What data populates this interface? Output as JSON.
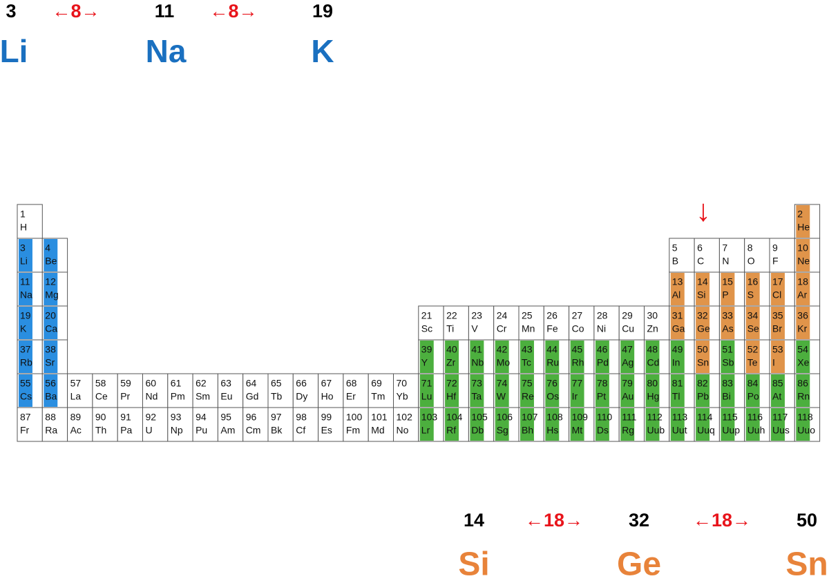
{
  "header": {
    "numbers": [
      "3",
      "11",
      "19"
    ],
    "gaps": [
      "←8→",
      "←8→"
    ],
    "symbols": [
      "Li",
      "Na",
      "K"
    ]
  },
  "footer": {
    "numbers": [
      "14",
      "32",
      "50"
    ],
    "gaps": [
      "←18→",
      "←18→"
    ],
    "symbols": [
      "Si",
      "Ge",
      "Sn"
    ]
  },
  "marker": "↓",
  "table": {
    "rows": [
      [
        [
          1,
          "H"
        ],
        [
          2,
          "He"
        ]
      ],
      [
        [
          3,
          "Li"
        ],
        [
          4,
          "Be"
        ],
        [
          5,
          "B"
        ],
        [
          6,
          "C"
        ],
        [
          7,
          "N"
        ],
        [
          8,
          "O"
        ],
        [
          9,
          "F"
        ],
        [
          10,
          "Ne"
        ]
      ],
      [
        [
          11,
          "Na"
        ],
        [
          12,
          "Mg"
        ],
        [
          13,
          "Al"
        ],
        [
          14,
          "Si"
        ],
        [
          15,
          "P"
        ],
        [
          16,
          "S"
        ],
        [
          17,
          "Cl"
        ],
        [
          18,
          "Ar"
        ]
      ],
      [
        [
          19,
          "K"
        ],
        [
          20,
          "Ca"
        ],
        [
          21,
          "Sc"
        ],
        [
          22,
          "Ti"
        ],
        [
          23,
          "V"
        ],
        [
          24,
          "Cr"
        ],
        [
          25,
          "Mn"
        ],
        [
          26,
          "Fe"
        ],
        [
          27,
          "Co"
        ],
        [
          28,
          "Ni"
        ],
        [
          29,
          "Cu"
        ],
        [
          30,
          "Zn"
        ],
        [
          31,
          "Ga"
        ],
        [
          32,
          "Ge"
        ],
        [
          33,
          "As"
        ],
        [
          34,
          "Se"
        ],
        [
          35,
          "Br"
        ],
        [
          36,
          "Kr"
        ]
      ],
      [
        [
          37,
          "Rb"
        ],
        [
          38,
          "Sr"
        ],
        [
          39,
          "Y"
        ],
        [
          40,
          "Zr"
        ],
        [
          41,
          "Nb"
        ],
        [
          42,
          "Mo"
        ],
        [
          43,
          "Tc"
        ],
        [
          44,
          "Ru"
        ],
        [
          45,
          "Rh"
        ],
        [
          46,
          "Pd"
        ],
        [
          47,
          "Ag"
        ],
        [
          48,
          "Cd"
        ],
        [
          49,
          "In"
        ],
        [
          50,
          "Sn"
        ],
        [
          51,
          "Sb"
        ],
        [
          52,
          "Te"
        ],
        [
          53,
          "I"
        ],
        [
          54,
          "Xe"
        ]
      ],
      [
        [
          55,
          "Cs"
        ],
        [
          56,
          "Ba"
        ],
        [
          57,
          "La"
        ],
        [
          58,
          "Ce"
        ],
        [
          59,
          "Pr"
        ],
        [
          60,
          "Nd"
        ],
        [
          61,
          "Pm"
        ],
        [
          62,
          "Sm"
        ],
        [
          63,
          "Eu"
        ],
        [
          64,
          "Gd"
        ],
        [
          65,
          "Tb"
        ],
        [
          66,
          "Dy"
        ],
        [
          67,
          "Ho"
        ],
        [
          68,
          "Er"
        ],
        [
          69,
          "Tm"
        ],
        [
          70,
          "Yb"
        ],
        [
          71,
          "Lu"
        ],
        [
          72,
          "Hf"
        ],
        [
          73,
          "Ta"
        ],
        [
          74,
          "W"
        ],
        [
          75,
          "Re"
        ],
        [
          76,
          "Os"
        ],
        [
          77,
          "Ir"
        ],
        [
          78,
          "Pt"
        ],
        [
          79,
          "Au"
        ],
        [
          80,
          "Hg"
        ],
        [
          81,
          "Tl"
        ],
        [
          82,
          "Pb"
        ],
        [
          83,
          "Bi"
        ],
        [
          84,
          "Po"
        ],
        [
          85,
          "At"
        ],
        [
          86,
          "Rn"
        ]
      ],
      [
        [
          87,
          "Fr"
        ],
        [
          88,
          "Ra"
        ],
        [
          89,
          "Ac"
        ],
        [
          90,
          "Th"
        ],
        [
          91,
          "Pa"
        ],
        [
          92,
          "U"
        ],
        [
          93,
          "Np"
        ],
        [
          94,
          "Pu"
        ],
        [
          95,
          "Am"
        ],
        [
          96,
          "Cm"
        ],
        [
          97,
          "Bk"
        ],
        [
          98,
          "Cf"
        ],
        [
          99,
          "Es"
        ],
        [
          100,
          "Fm"
        ],
        [
          101,
          "Md"
        ],
        [
          102,
          "No"
        ],
        [
          103,
          "Lr"
        ],
        [
          104,
          "Rf"
        ],
        [
          105,
          "Db"
        ],
        [
          106,
          "Sg"
        ],
        [
          107,
          "Bh"
        ],
        [
          108,
          "Hs"
        ],
        [
          109,
          "Mt"
        ],
        [
          110,
          "Ds"
        ],
        [
          111,
          "Rg"
        ],
        [
          112,
          "Uub"
        ],
        [
          113,
          "Uut"
        ],
        [
          114,
          "Uuq"
        ],
        [
          115,
          "Uup"
        ],
        [
          116,
          "Uuh"
        ],
        [
          117,
          "Uus"
        ],
        [
          118,
          "Uuo"
        ]
      ]
    ]
  }
}
